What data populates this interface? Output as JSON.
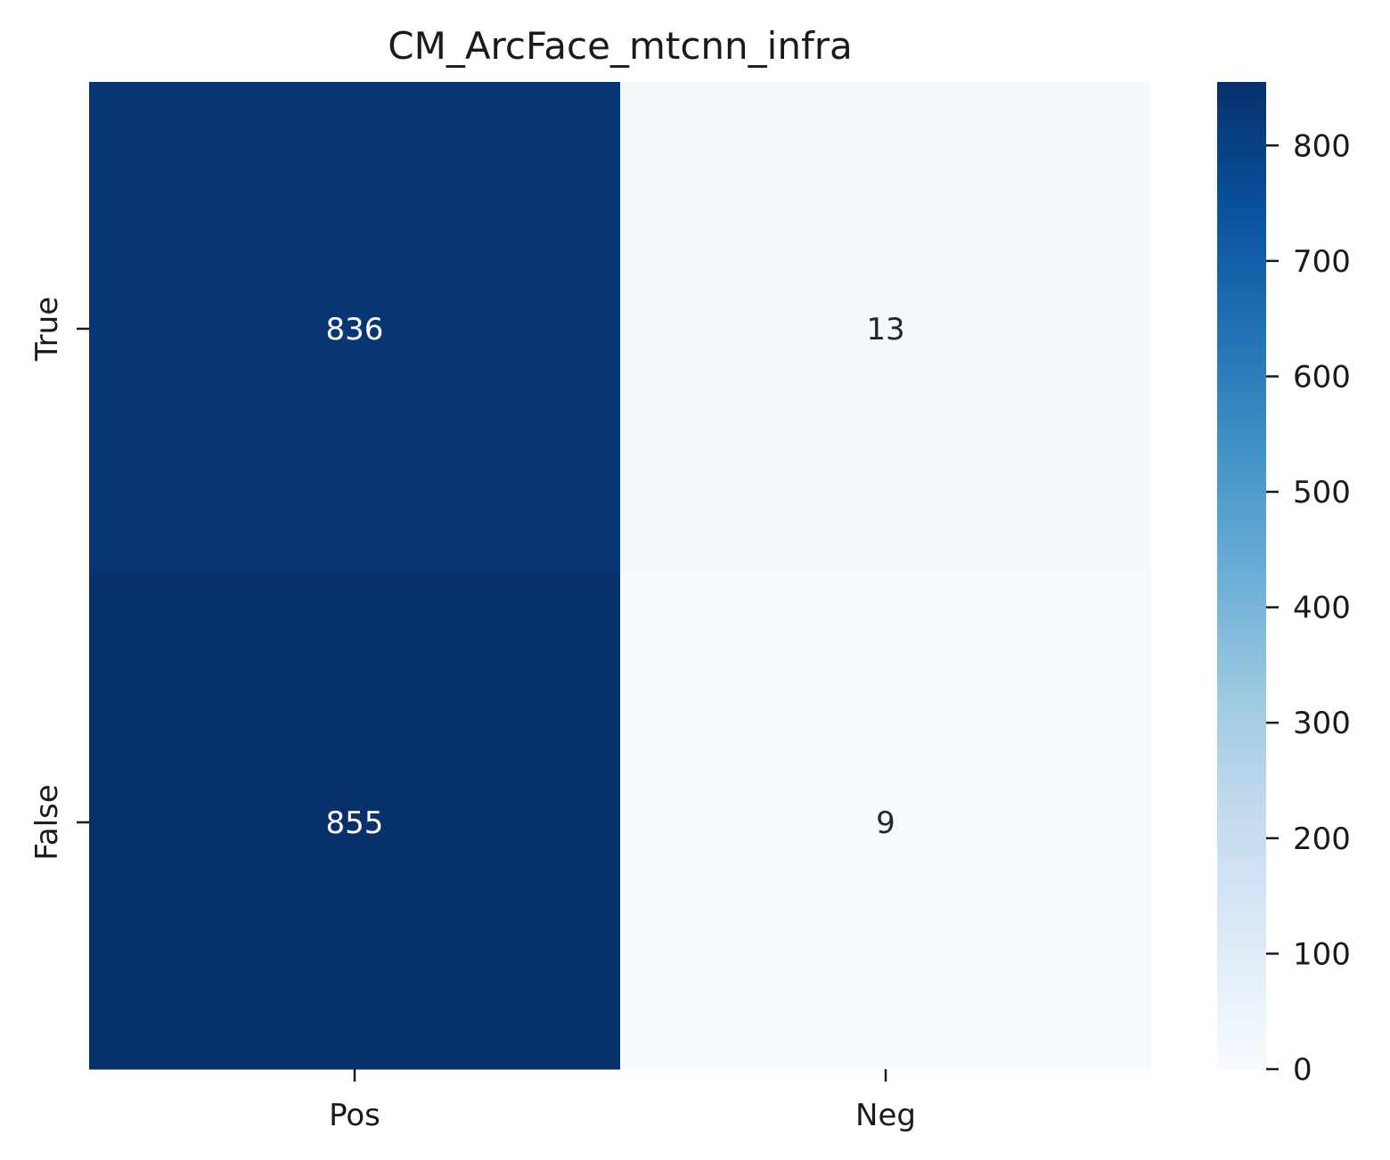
{
  "chart_data": {
    "type": "heatmap",
    "title": "CM_ArcFace_mtcnn_infra",
    "x_categories": [
      "Pos",
      "Neg"
    ],
    "y_categories": [
      "True",
      "False"
    ],
    "values": [
      [
        836,
        13
      ],
      [
        855,
        9
      ]
    ],
    "colormap": "Blues",
    "colorbar": {
      "min": 0,
      "max": 855,
      "ticks": [
        0,
        100,
        200,
        300,
        400,
        500,
        600,
        700,
        800
      ],
      "tick_labels": [
        "0",
        "100",
        "200",
        "300",
        "400",
        "500",
        "600",
        "700",
        "800"
      ]
    },
    "annotation_colors": {
      "dark_cell": "#ffffff",
      "light_cell": "#262626"
    },
    "grid": false,
    "colors": {
      "low": "#f7fbff",
      "high": "#08306b"
    }
  }
}
